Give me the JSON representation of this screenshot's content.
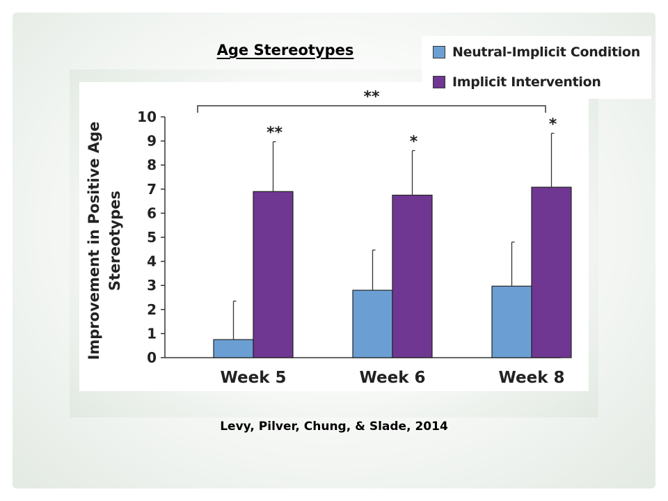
{
  "slide": {
    "title": "Age Stereotypes",
    "citation": "Levy, Pilver, Chung, & Slade, 2014"
  },
  "chart_data": {
    "type": "bar",
    "title": "",
    "xlabel": "",
    "ylabel": "Improvement in Positive Age Stereotypes",
    "ylabel_lines": [
      "Improvement in Positive Age",
      "Stereotypes"
    ],
    "ylim": [
      0,
      10
    ],
    "yticks": [
      0,
      1,
      2,
      3,
      4,
      5,
      6,
      7,
      8,
      9,
      10
    ],
    "ytick_labels": [
      "0",
      "1",
      "2",
      "3",
      "4",
      "5",
      "6",
      "7",
      "8",
      "9",
      "10"
    ],
    "categories": [
      "Week 5",
      "Week 6",
      "Week 8"
    ],
    "series": [
      {
        "name": "Neutral-Implicit Condition",
        "color": "#6b9fd4",
        "values": [
          0.75,
          2.8,
          2.97
        ],
        "error_upper": [
          2.35,
          4.47,
          4.8
        ]
      },
      {
        "name": "Implicit Intervention",
        "color": "#6f3792",
        "values": [
          6.9,
          6.75,
          7.08
        ],
        "error_upper": [
          8.97,
          8.6,
          9.32
        ]
      }
    ],
    "significance": [
      "**",
      "*",
      "*"
    ],
    "overall_significance": "**",
    "grid": false,
    "legend_position": "top-right"
  }
}
